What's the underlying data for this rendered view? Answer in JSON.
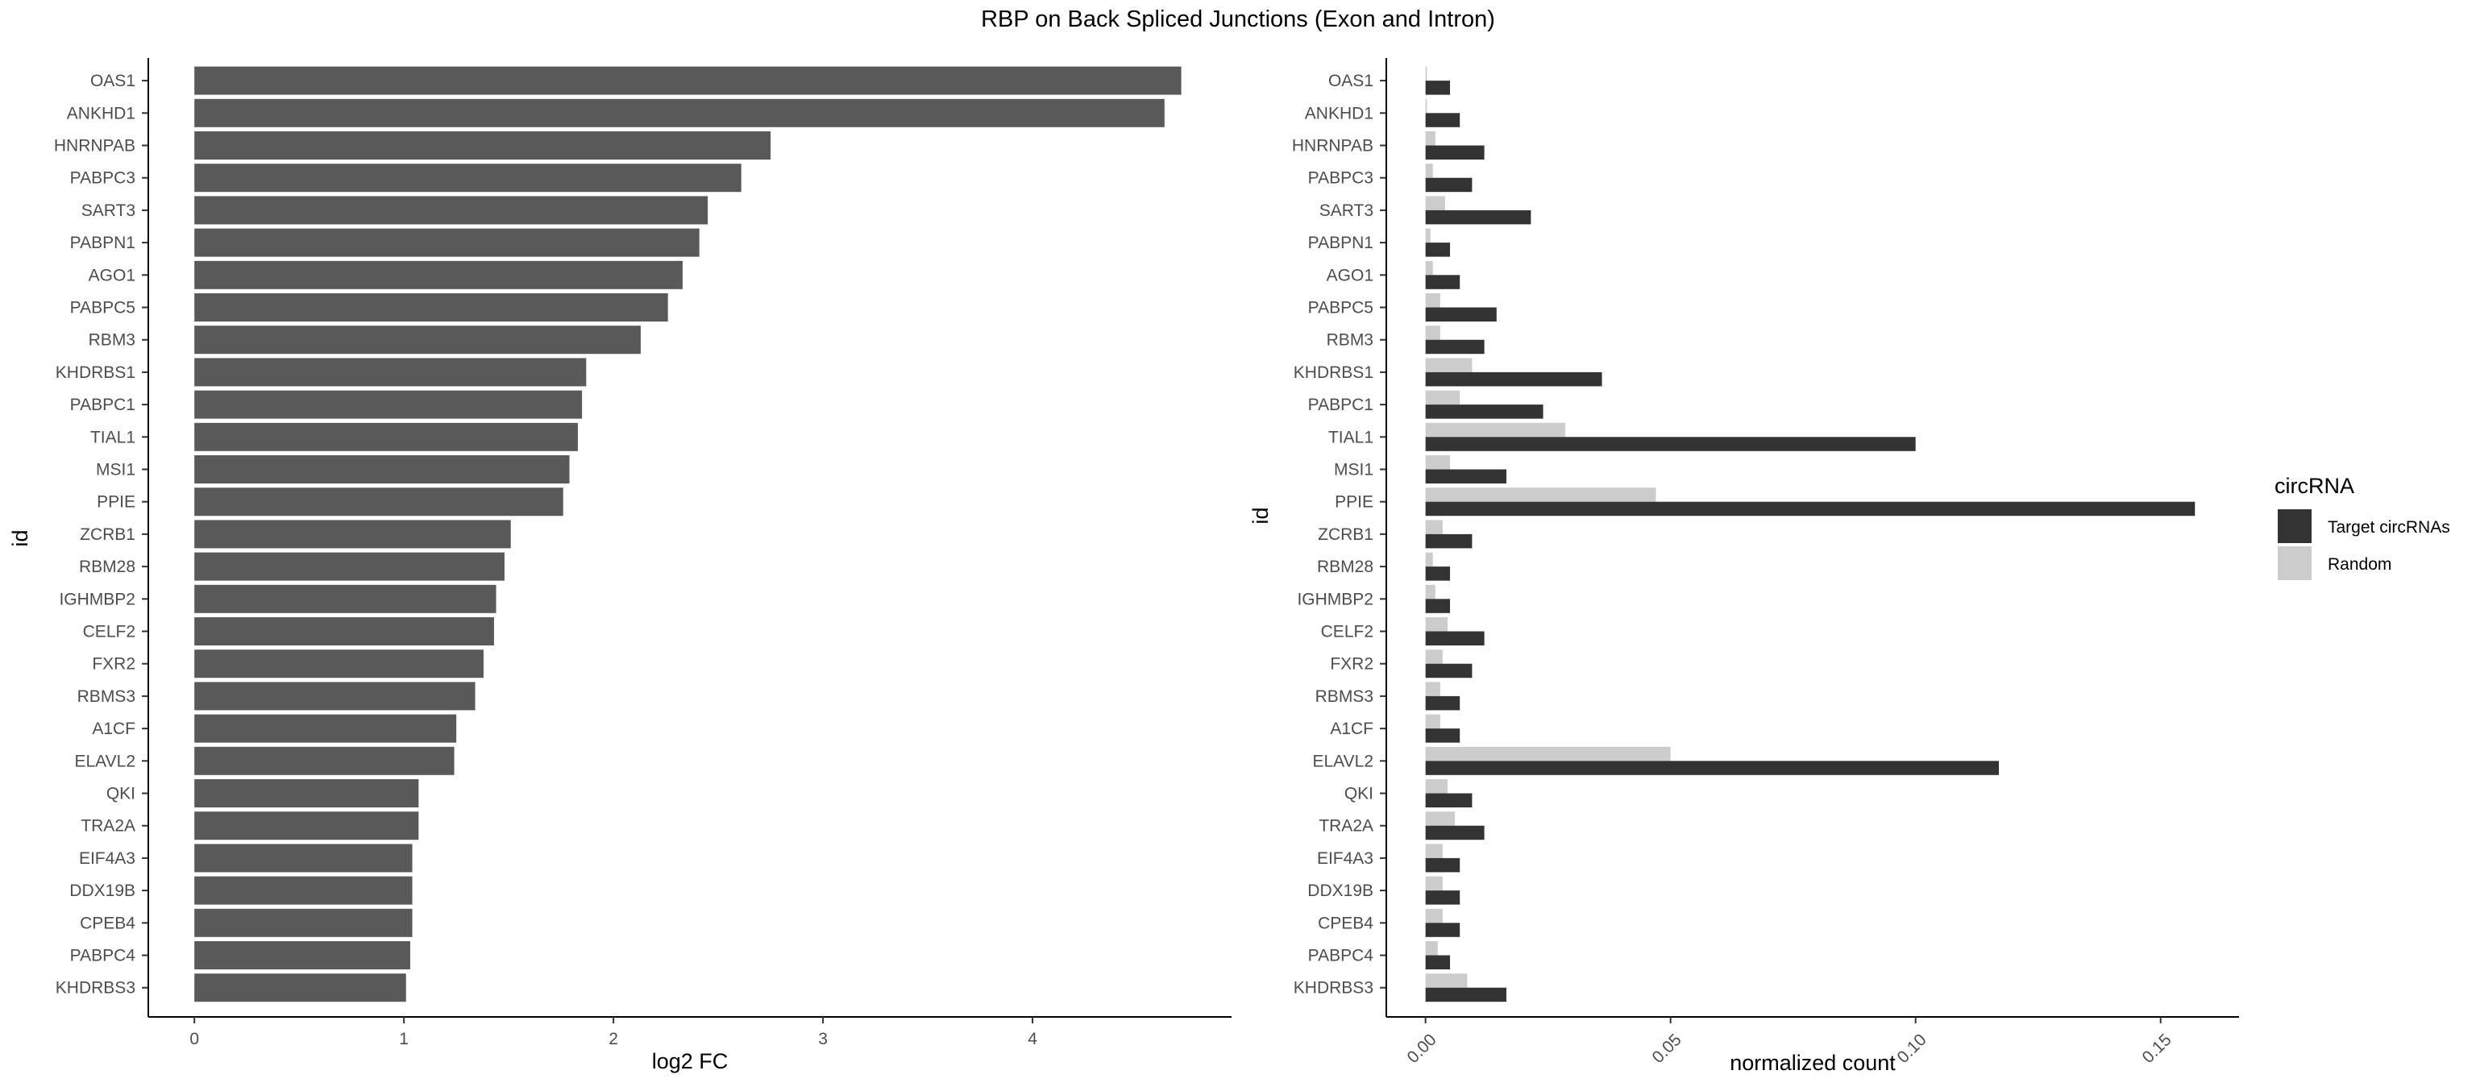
{
  "figure": {
    "title": "RBP on Back Spliced Junctions (Exon and Intron)"
  },
  "chart_data": [
    {
      "type": "bar",
      "orientation": "horizontal",
      "xlabel": "log2 FC",
      "ylabel": "id",
      "xlim": [
        -0.22,
        4.95
      ],
      "xticks": [
        0,
        1,
        2,
        3,
        4
      ],
      "bar_color": "#595959",
      "categories": [
        "OAS1",
        "ANKHD1",
        "HNRNPAB",
        "PABPC3",
        "SART3",
        "PABPN1",
        "AGO1",
        "PABPC5",
        "RBM3",
        "KHDRBS1",
        "PABPC1",
        "TIAL1",
        "MSI1",
        "PPIE",
        "ZCRB1",
        "RBM28",
        "IGHMBP2",
        "CELF2",
        "FXR2",
        "RBMS3",
        "A1CF",
        "ELAVL2",
        "QKI",
        "TRA2A",
        "EIF4A3",
        "DDX19B",
        "CPEB4",
        "PABPC4",
        "KHDRBS3"
      ],
      "values": [
        4.71,
        4.63,
        2.75,
        2.61,
        2.45,
        2.41,
        2.33,
        2.26,
        2.13,
        1.87,
        1.85,
        1.83,
        1.79,
        1.76,
        1.51,
        1.48,
        1.44,
        1.43,
        1.38,
        1.34,
        1.25,
        1.24,
        1.07,
        1.07,
        1.04,
        1.04,
        1.04,
        1.03,
        1.01
      ]
    },
    {
      "type": "bar",
      "orientation": "horizontal",
      "grouped": true,
      "xlabel": "normalized count",
      "ylabel": "id",
      "xlim": [
        -0.008,
        0.166
      ],
      "xticks": [
        0.0,
        0.05,
        0.1,
        0.15
      ],
      "xtick_labels": [
        "0.00",
        "0.05",
        "0.10",
        "0.15"
      ],
      "legend_title": "circRNA",
      "legend_position": "right",
      "categories": [
        "OAS1",
        "ANKHD1",
        "HNRNPAB",
        "PABPC3",
        "SART3",
        "PABPN1",
        "AGO1",
        "PABPC5",
        "RBM3",
        "KHDRBS1",
        "PABPC1",
        "TIAL1",
        "MSI1",
        "PPIE",
        "ZCRB1",
        "RBM28",
        "IGHMBP2",
        "CELF2",
        "FXR2",
        "RBMS3",
        "A1CF",
        "ELAVL2",
        "QKI",
        "TRA2A",
        "EIF4A3",
        "DDX19B",
        "CPEB4",
        "PABPC4",
        "KHDRBS3"
      ],
      "series": [
        {
          "name": "Target circRNAs",
          "color": "#333333",
          "values": [
            0.005,
            0.007,
            0.012,
            0.0095,
            0.0215,
            0.005,
            0.007,
            0.0145,
            0.012,
            0.036,
            0.024,
            0.1,
            0.0165,
            0.157,
            0.0095,
            0.005,
            0.005,
            0.012,
            0.0095,
            0.007,
            0.007,
            0.117,
            0.0095,
            0.012,
            0.007,
            0.007,
            0.007,
            0.005,
            0.0165
          ]
        },
        {
          "name": "Random",
          "color": "#cccccc",
          "values": [
            0.0003,
            0.0003,
            0.002,
            0.0015,
            0.004,
            0.001,
            0.0015,
            0.003,
            0.003,
            0.0095,
            0.007,
            0.0285,
            0.005,
            0.047,
            0.0035,
            0.0015,
            0.002,
            0.0045,
            0.0035,
            0.003,
            0.003,
            0.05,
            0.0045,
            0.006,
            0.0035,
            0.0035,
            0.0035,
            0.0025,
            0.0085
          ]
        }
      ]
    }
  ]
}
